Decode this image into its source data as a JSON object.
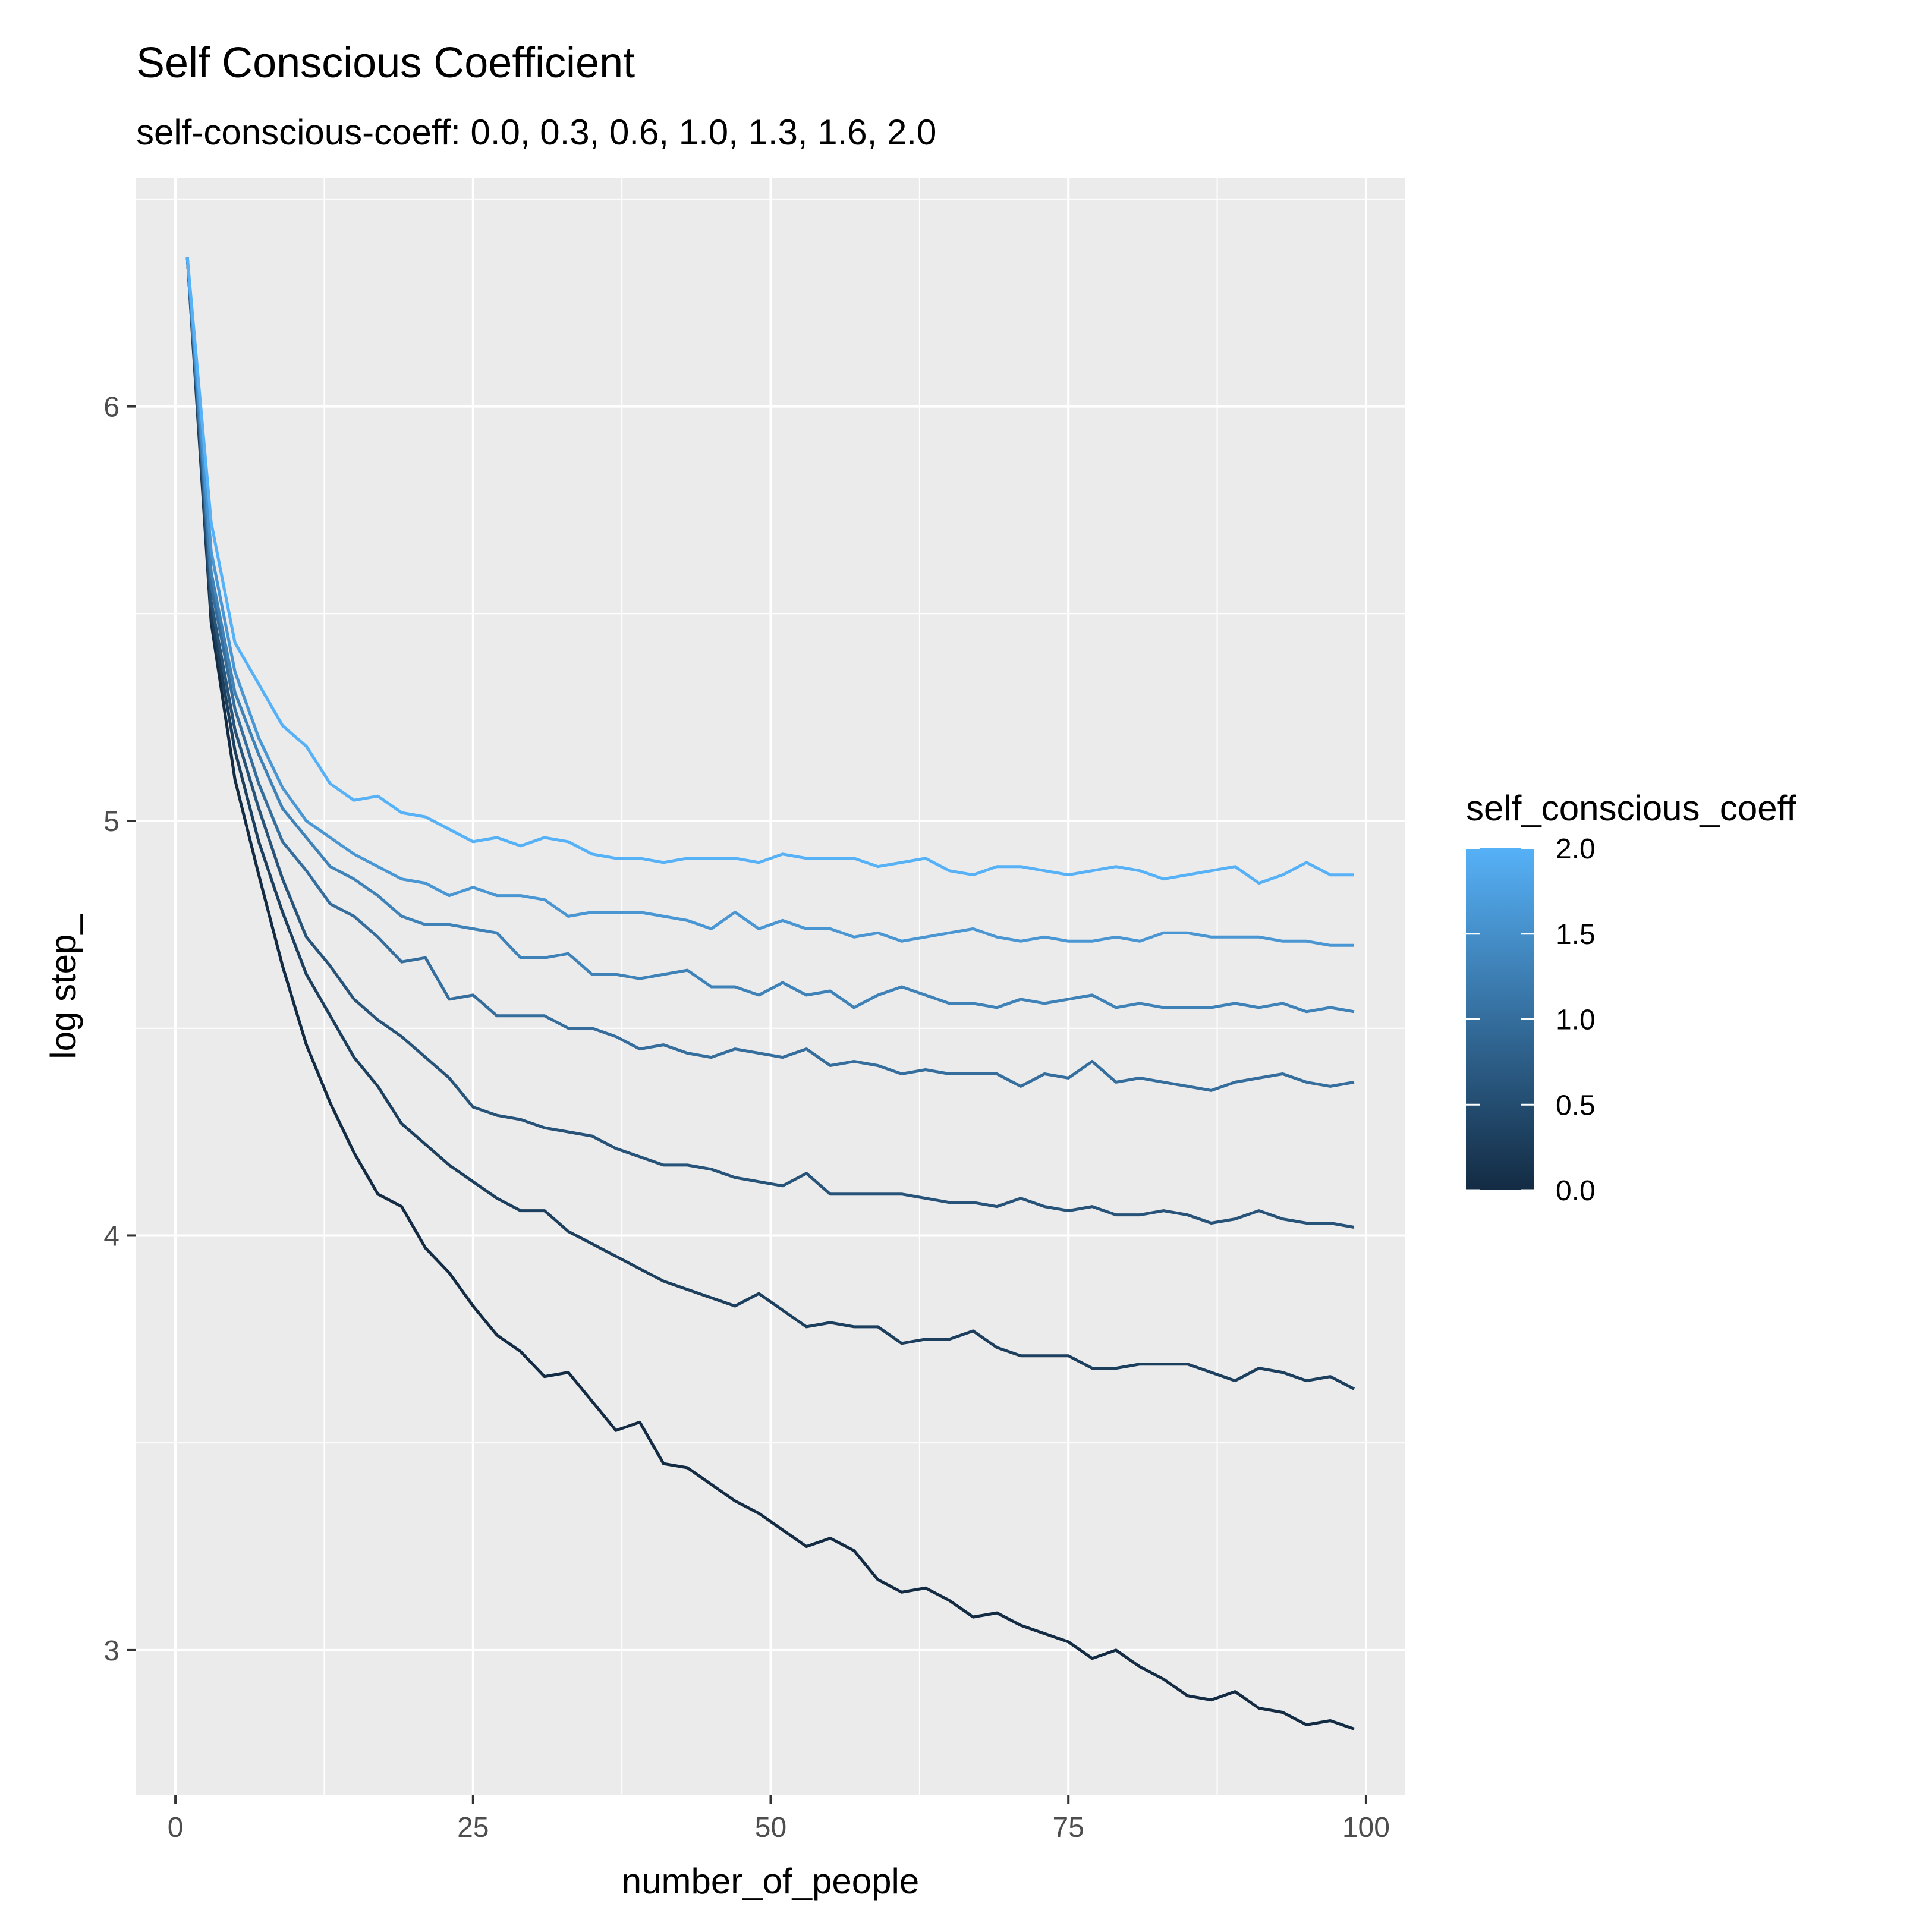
{
  "chart_data": {
    "type": "line",
    "title": "Self Conscious Coefficient",
    "subtitle": "self-conscious-coeff: 0.0, 0.3, 0.6, 1.0, 1.3, 1.6, 2.0",
    "xlabel": "number_of_people",
    "ylabel": "log step_",
    "xlim": [
      -3.3,
      103.3
    ],
    "ylim": [
      2.65,
      6.55
    ],
    "x_ticks": [
      0,
      25,
      50,
      75,
      100
    ],
    "y_ticks": [
      3,
      4,
      5,
      6
    ],
    "grid": true,
    "legend": {
      "title": "self_conscious_coeff",
      "position": "right",
      "ticks": [
        0.0,
        0.5,
        1.0,
        1.5,
        2.0
      ],
      "range": [
        0.0,
        2.0
      ],
      "low_color": "#132b43",
      "high_color": "#56b1f7"
    },
    "x": [
      1,
      3,
      5,
      7,
      9,
      11,
      13,
      15,
      17,
      19,
      21,
      23,
      25,
      27,
      29,
      31,
      33,
      35,
      37,
      39,
      41,
      43,
      45,
      47,
      49,
      51,
      53,
      55,
      57,
      59,
      61,
      63,
      65,
      67,
      69,
      71,
      73,
      75,
      77,
      79,
      81,
      83,
      85,
      87,
      89,
      91,
      93,
      95,
      97,
      99
    ],
    "series": [
      {
        "coeff": 0.0,
        "values": [
          6.36,
          5.48,
          5.1,
          4.87,
          4.65,
          4.46,
          4.32,
          4.2,
          4.1,
          4.07,
          3.97,
          3.91,
          3.83,
          3.76,
          3.72,
          3.66,
          3.67,
          3.6,
          3.53,
          3.55,
          3.45,
          3.44,
          3.4,
          3.36,
          3.33,
          3.29,
          3.25,
          3.27,
          3.24,
          3.17,
          3.14,
          3.15,
          3.12,
          3.08,
          3.09,
          3.06,
          3.04,
          3.02,
          2.98,
          3.0,
          2.96,
          2.93,
          2.89,
          2.88,
          2.9,
          2.86,
          2.85,
          2.82,
          2.83,
          2.81
        ]
      },
      {
        "coeff": 0.3,
        "values": [
          6.36,
          5.5,
          5.17,
          4.95,
          4.78,
          4.63,
          4.53,
          4.43,
          4.36,
          4.27,
          4.22,
          4.17,
          4.13,
          4.09,
          4.06,
          4.06,
          4.01,
          3.98,
          3.95,
          3.92,
          3.89,
          3.87,
          3.85,
          3.83,
          3.86,
          3.82,
          3.78,
          3.79,
          3.78,
          3.78,
          3.74,
          3.75,
          3.75,
          3.77,
          3.73,
          3.71,
          3.71,
          3.71,
          3.68,
          3.68,
          3.69,
          3.69,
          3.69,
          3.67,
          3.65,
          3.68,
          3.67,
          3.65,
          3.66,
          3.63
        ]
      },
      {
        "coeff": 0.6,
        "values": [
          6.36,
          5.53,
          5.22,
          5.03,
          4.86,
          4.72,
          4.65,
          4.57,
          4.52,
          4.48,
          4.43,
          4.38,
          4.31,
          4.29,
          4.28,
          4.26,
          4.25,
          4.24,
          4.21,
          4.19,
          4.17,
          4.17,
          4.16,
          4.14,
          4.13,
          4.12,
          4.15,
          4.1,
          4.1,
          4.1,
          4.1,
          4.09,
          4.08,
          4.08,
          4.07,
          4.09,
          4.07,
          4.06,
          4.07,
          4.05,
          4.05,
          4.06,
          4.05,
          4.03,
          4.04,
          4.06,
          4.04,
          4.03,
          4.03,
          4.02
        ]
      },
      {
        "coeff": 1.0,
        "values": [
          6.36,
          5.57,
          5.27,
          5.09,
          4.95,
          4.88,
          4.8,
          4.77,
          4.72,
          4.66,
          4.67,
          4.57,
          4.58,
          4.53,
          4.53,
          4.53,
          4.5,
          4.5,
          4.48,
          4.45,
          4.46,
          4.44,
          4.43,
          4.45,
          4.44,
          4.43,
          4.45,
          4.41,
          4.42,
          4.41,
          4.39,
          4.4,
          4.39,
          4.39,
          4.39,
          4.36,
          4.39,
          4.38,
          4.42,
          4.37,
          4.38,
          4.37,
          4.36,
          4.35,
          4.37,
          4.38,
          4.39,
          4.37,
          4.36,
          4.37
        ]
      },
      {
        "coeff": 1.3,
        "values": [
          6.36,
          5.6,
          5.31,
          5.16,
          5.03,
          4.96,
          4.89,
          4.86,
          4.82,
          4.77,
          4.75,
          4.75,
          4.74,
          4.73,
          4.67,
          4.67,
          4.68,
          4.63,
          4.63,
          4.62,
          4.63,
          4.64,
          4.6,
          4.6,
          4.58,
          4.61,
          4.58,
          4.59,
          4.55,
          4.58,
          4.6,
          4.58,
          4.56,
          4.56,
          4.55,
          4.57,
          4.56,
          4.57,
          4.58,
          4.55,
          4.56,
          4.55,
          4.55,
          4.55,
          4.56,
          4.55,
          4.56,
          4.54,
          4.55,
          4.54
        ]
      },
      {
        "coeff": 1.6,
        "values": [
          6.36,
          5.65,
          5.36,
          5.2,
          5.08,
          5.0,
          4.96,
          4.92,
          4.89,
          4.86,
          4.85,
          4.82,
          4.84,
          4.82,
          4.82,
          4.81,
          4.77,
          4.78,
          4.78,
          4.78,
          4.77,
          4.76,
          4.74,
          4.78,
          4.74,
          4.76,
          4.74,
          4.74,
          4.72,
          4.73,
          4.71,
          4.72,
          4.73,
          4.74,
          4.72,
          4.71,
          4.72,
          4.71,
          4.71,
          4.72,
          4.71,
          4.73,
          4.73,
          4.72,
          4.72,
          4.72,
          4.71,
          4.71,
          4.7,
          4.7
        ]
      },
      {
        "coeff": 2.0,
        "values": [
          6.36,
          5.72,
          5.43,
          5.33,
          5.23,
          5.18,
          5.09,
          5.05,
          5.06,
          5.02,
          5.01,
          4.98,
          4.95,
          4.96,
          4.94,
          4.96,
          4.95,
          4.92,
          4.91,
          4.91,
          4.9,
          4.91,
          4.91,
          4.91,
          4.9,
          4.92,
          4.91,
          4.91,
          4.91,
          4.89,
          4.9,
          4.91,
          4.88,
          4.87,
          4.89,
          4.89,
          4.88,
          4.87,
          4.88,
          4.89,
          4.88,
          4.86,
          4.87,
          4.88,
          4.89,
          4.85,
          4.87,
          4.9,
          4.87,
          4.87
        ]
      }
    ]
  }
}
